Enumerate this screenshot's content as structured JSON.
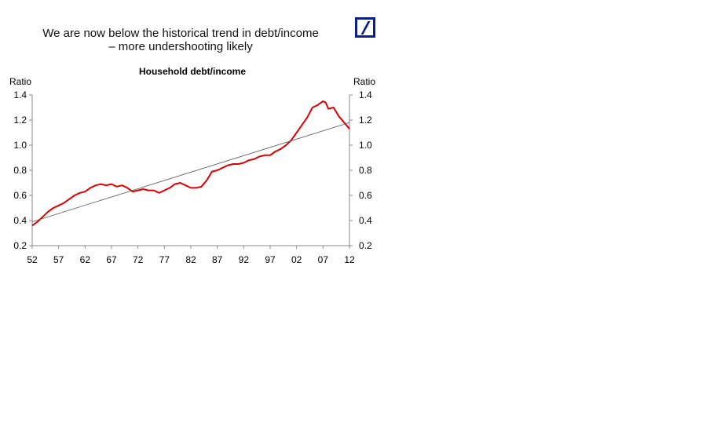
{
  "headline": {
    "line1": "We are now below the historical trend in debt/income",
    "line2": "– more undershooting likely"
  },
  "logo": {
    "name": "deutsche-bank-logo",
    "color": "#0a1f8f"
  },
  "chart_data": {
    "type": "line",
    "title": "Household debt/income",
    "ylabel_left": "Ratio",
    "ylabel_right": "Ratio",
    "xlabel": "",
    "x_tick_labels": [
      "52",
      "57",
      "62",
      "67",
      "72",
      "77",
      "82",
      "87",
      "92",
      "97",
      "02",
      "07",
      "12"
    ],
    "x_tick_years": [
      1952,
      1957,
      1962,
      1967,
      1972,
      1977,
      1982,
      1987,
      1992,
      1997,
      2002,
      2007,
      2012
    ],
    "y_ticks": [
      0.2,
      0.4,
      0.6,
      0.8,
      1.0,
      1.2,
      1.4
    ],
    "y_tick_labels": [
      "0.2",
      "0.4",
      "0.6",
      "0.8",
      "1.0",
      "1.2",
      "1.4"
    ],
    "xlim": [
      1952,
      2012
    ],
    "ylim": [
      0.2,
      1.4
    ],
    "grid": false,
    "series": [
      {
        "color": "#e00000",
        "x": [
          1952,
          1953,
          1954,
          1955,
          1956,
          1957,
          1958,
          1959,
          1960,
          1961,
          1962,
          1963,
          1964,
          1965,
          1966,
          1967,
          1968,
          1969,
          1970,
          1971,
          1972,
          1973,
          1974,
          1975,
          1976,
          1977,
          1978,
          1979,
          1980,
          1981,
          1982,
          1983,
          1984,
          1985,
          1986,
          1987,
          1988,
          1989,
          1990,
          1991,
          1992,
          1993,
          1994,
          1995,
          1996,
          1997,
          1998,
          1999,
          2000,
          2001,
          2002,
          2003,
          2004,
          2005,
          2006,
          2007,
          2007.5,
          2008,
          2009,
          2010,
          2011,
          2012
        ],
        "y": [
          0.36,
          0.39,
          0.43,
          0.47,
          0.5,
          0.52,
          0.54,
          0.57,
          0.6,
          0.62,
          0.63,
          0.66,
          0.68,
          0.69,
          0.68,
          0.69,
          0.67,
          0.68,
          0.66,
          0.63,
          0.64,
          0.65,
          0.64,
          0.64,
          0.62,
          0.64,
          0.66,
          0.69,
          0.7,
          0.68,
          0.66,
          0.66,
          0.67,
          0.72,
          0.79,
          0.8,
          0.82,
          0.84,
          0.85,
          0.85,
          0.86,
          0.88,
          0.89,
          0.91,
          0.92,
          0.92,
          0.95,
          0.97,
          1.0,
          1.04,
          1.1,
          1.16,
          1.22,
          1.3,
          1.32,
          1.35,
          1.34,
          1.29,
          1.3,
          1.23,
          1.18,
          1.13
        ]
      },
      {
        "color": "#555555",
        "x": [
          1952,
          2012
        ],
        "y": [
          0.39,
          1.18
        ]
      }
    ]
  }
}
